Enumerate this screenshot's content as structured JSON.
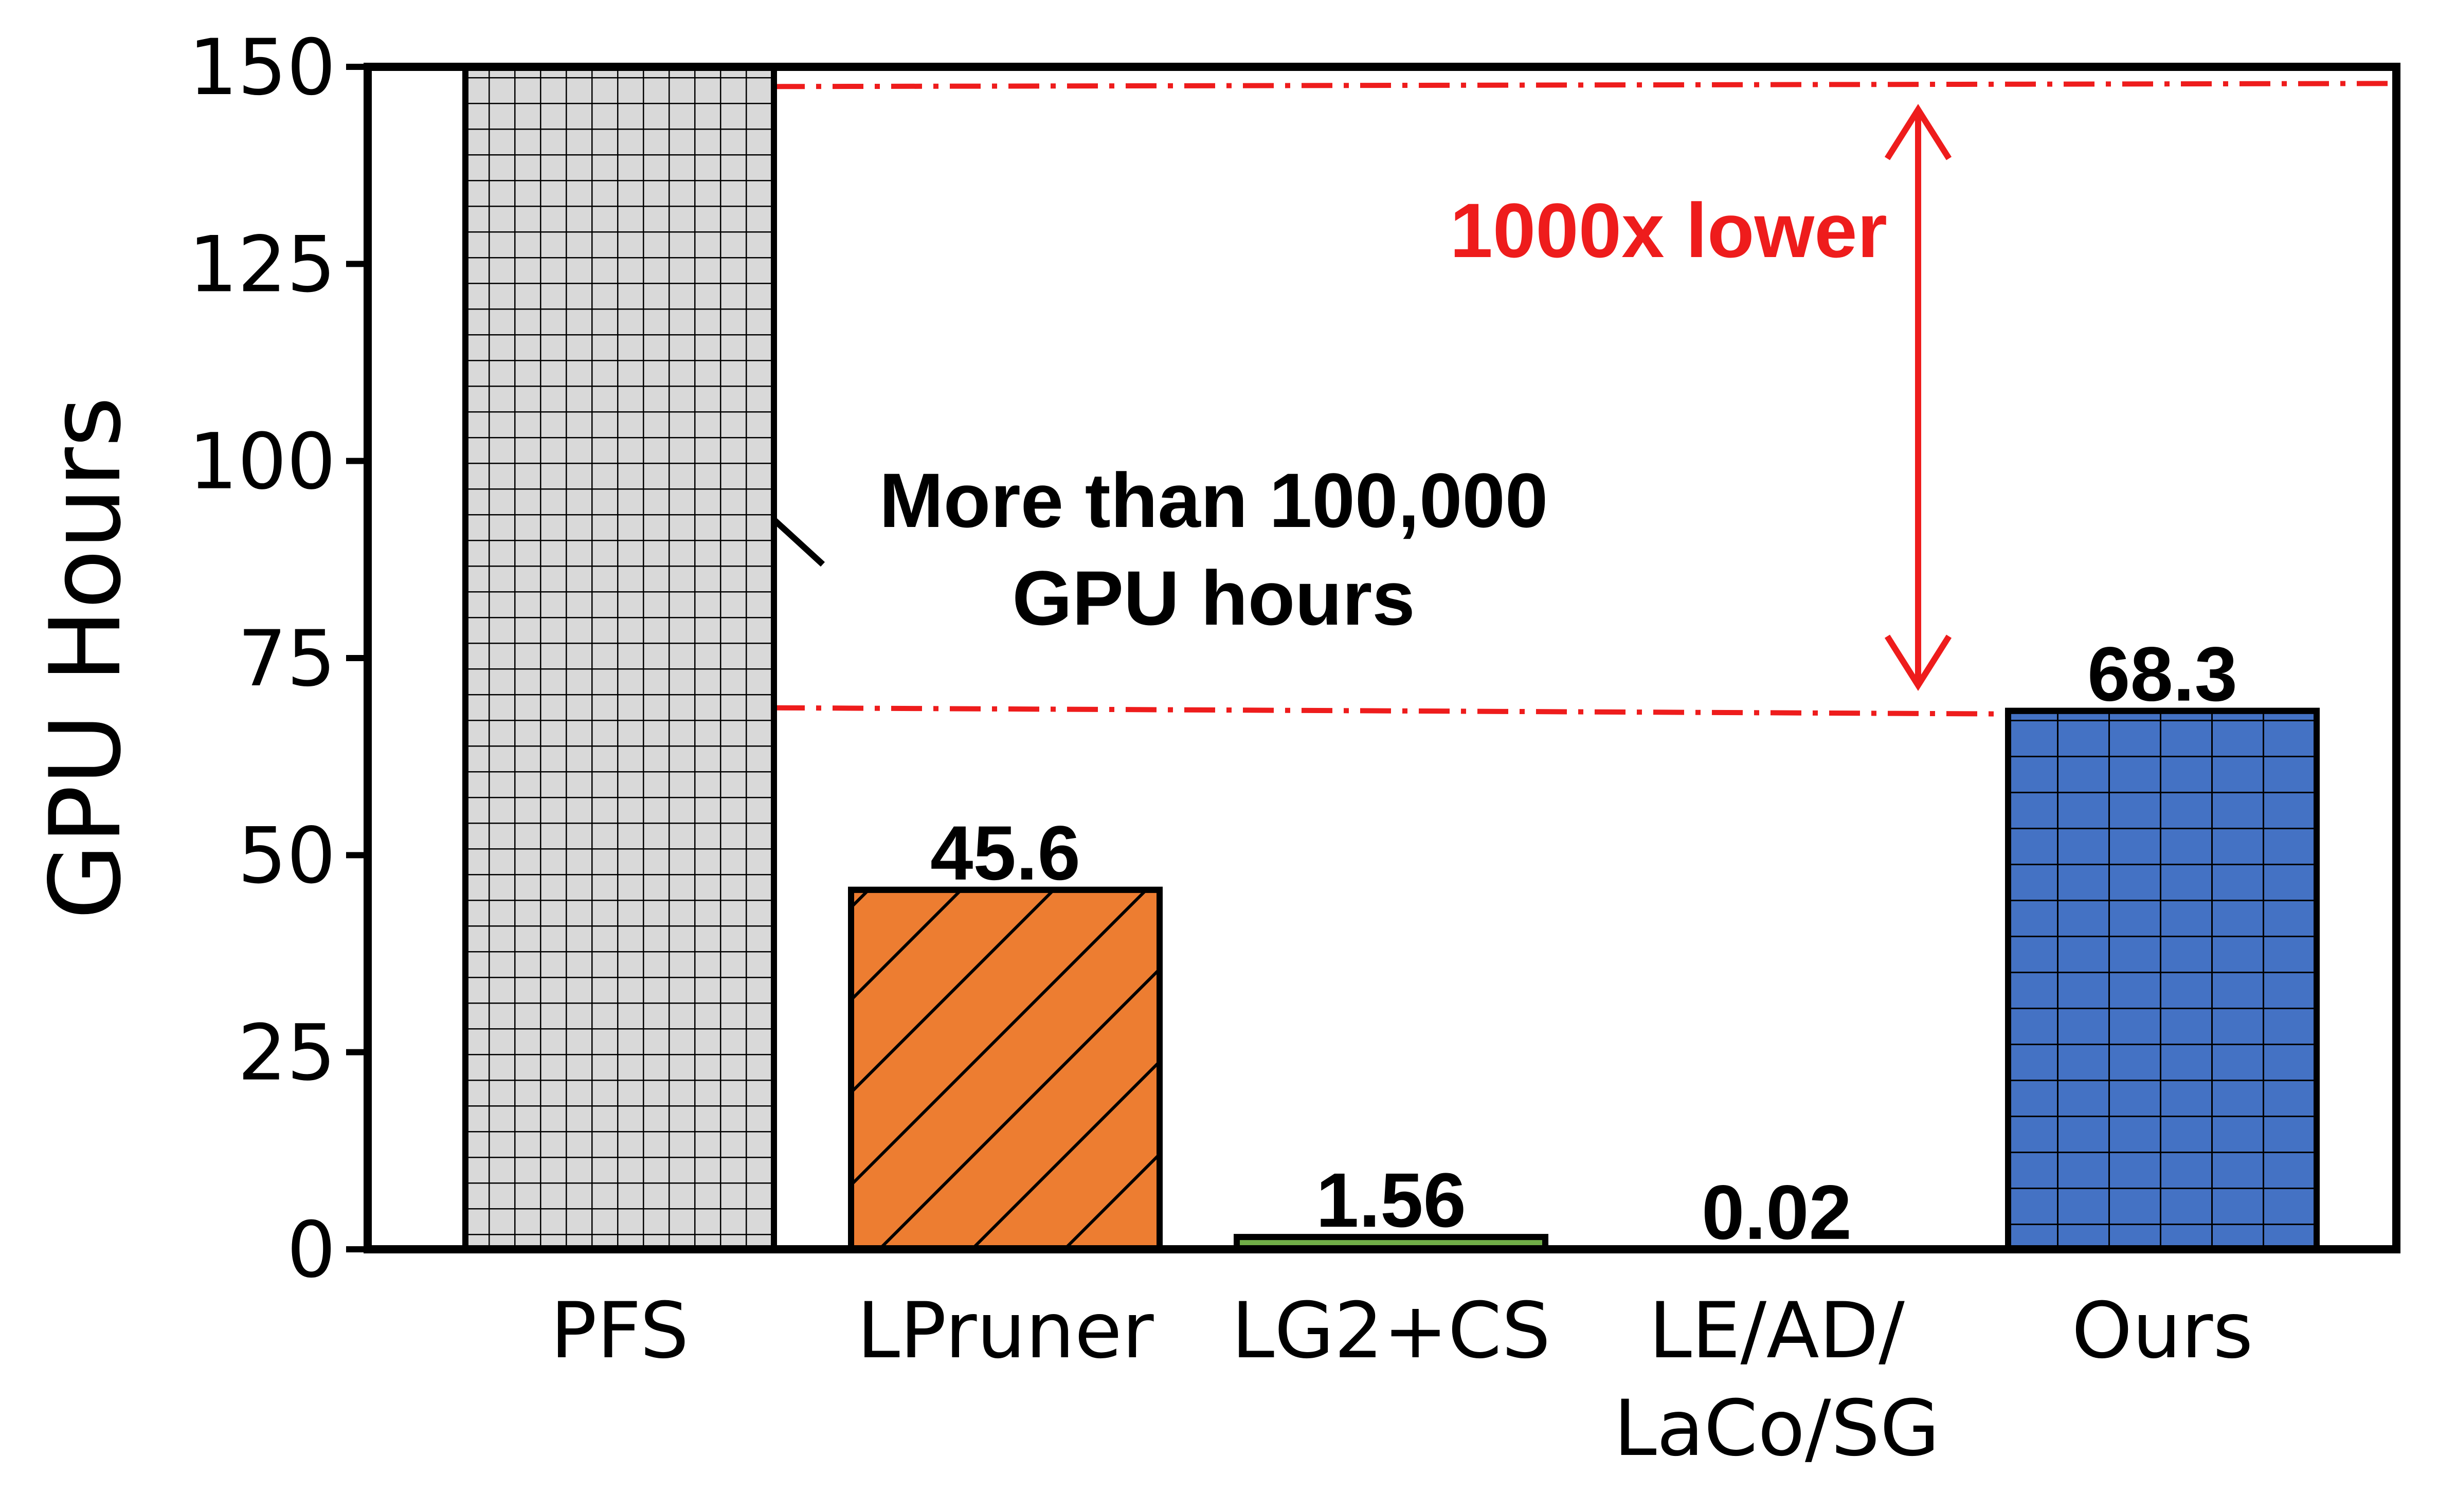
{
  "chart_data": {
    "type": "bar",
    "title": "",
    "xlabel": "",
    "ylabel": "GPU Hours",
    "ylim": [
      0,
      150
    ],
    "yticks": [
      0,
      25,
      50,
      75,
      100,
      125,
      150
    ],
    "grid": false,
    "categories": [
      {
        "lines": [
          "PFS"
        ]
      },
      {
        "lines": [
          "LPruner"
        ]
      },
      {
        "lines": [
          "LG2+CS"
        ]
      },
      {
        "lines": [
          "LE/AD/",
          "LaCo/SG"
        ]
      },
      {
        "lines": [
          "Ours"
        ]
      }
    ],
    "values": [
      150,
      45.6,
      1.56,
      0.02,
      68.3
    ],
    "value_labels": [
      "",
      "45.6",
      "1.56",
      "0.02",
      "68.3"
    ],
    "bar_colors": [
      "#d9d9d9",
      "#ed7d31",
      "#70ad47",
      "#ffffff",
      "#4472c4"
    ],
    "bar_hatches": [
      "grid",
      "diagonal",
      "none",
      "none",
      "grid"
    ],
    "annotations": {
      "pfs_note": {
        "lines": [
          "More than 100,000",
          "GPU hours"
        ],
        "points_to_value": 97
      },
      "reference_lines": {
        "color": "#ee1c1c",
        "upper_value": 147.5,
        "lower_value": 68.3
      },
      "ratio_label": {
        "text": "1000x lower",
        "color": "#ee1c1c"
      }
    }
  }
}
